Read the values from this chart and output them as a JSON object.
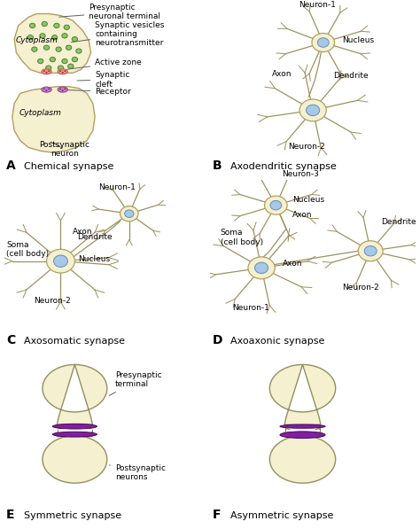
{
  "bg_color": "#ffffff",
  "neuron_body_color": "#f5f0d0",
  "neuron_outline": "#b0a060",
  "nucleus_color": "#a8c8e8",
  "nucleus_outline": "#6090b0",
  "vesicle_color": "#88c860",
  "vesicle_outline": "#407030",
  "active_zone_color": "#e8a090",
  "active_zone_outline": "#c06050",
  "receptor_color": "#d080c0",
  "purple_band": "#8020a0",
  "label_color": "#000000",
  "line_color": "#606060",
  "panel_titles": [
    "Chemical synapse",
    "Axodendritic synapse",
    "Axosomatic synapse",
    "Axoaxonic synapse",
    "Symmetric synapse",
    "Asymmetric synapse"
  ],
  "annotation_fontsize": 6.5,
  "title_fontsize": 8.0,
  "panel_label_fontsize": 10
}
